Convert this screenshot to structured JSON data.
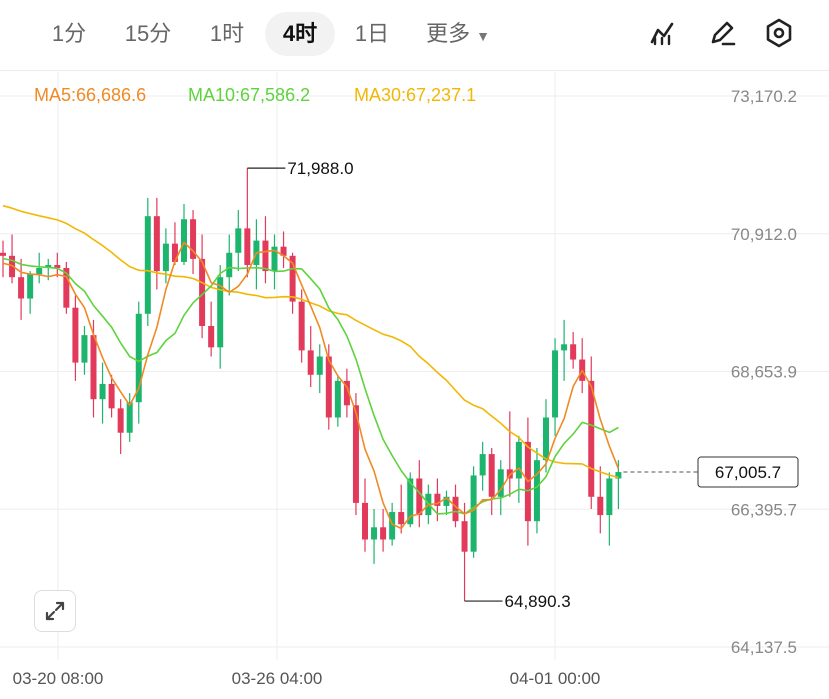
{
  "toolbar": {
    "tabs": [
      "1分",
      "15分",
      "1时",
      "4时",
      "1日"
    ],
    "active_tab": "4时",
    "more_label": "更多"
  },
  "icons": [
    "indicator-icon",
    "draw-icon",
    "settings-icon",
    "expand-icon"
  ],
  "moving_averages": {
    "ma5": "MA5:66,686.6",
    "ma10": "MA10:67,586.2",
    "ma30": "MA30:67,237.1"
  },
  "colors": {
    "up": "#1db46e",
    "down": "#e23a5a",
    "ma5": "#f08a24",
    "ma10": "#5ed33d",
    "ma30": "#f2b705",
    "grid": "#eeeeee",
    "axis_text": "#888888"
  },
  "chart_data": {
    "type": "candlestick",
    "y_axis_labels": [
      "73,170.2",
      "70,912.0",
      "68,653.9",
      "66,395.7",
      "64,137.5"
    ],
    "ylim": [
      64137.5,
      73170.2
    ],
    "x_axis_labels": [
      "03-20 08:00",
      "03-26 04:00",
      "04-01 00:00"
    ],
    "current_price": "67,005.7",
    "high_label": "71,988.0",
    "low_label": "64,890.3",
    "candles": [
      [
        70600,
        70800,
        70200,
        70550
      ],
      [
        70550,
        70900,
        70100,
        70200
      ],
      [
        70200,
        70500,
        69500,
        69850
      ],
      [
        69850,
        70300,
        69600,
        70250
      ],
      [
        70250,
        70600,
        70100,
        70350
      ],
      [
        70350,
        70500,
        70150,
        70400
      ],
      [
        70400,
        70600,
        70200,
        70350
      ],
      [
        70350,
        70450,
        69600,
        69700
      ],
      [
        69700,
        69900,
        68500,
        68800
      ],
      [
        68800,
        69400,
        68600,
        69250
      ],
      [
        69250,
        69500,
        67900,
        68200
      ],
      [
        68200,
        68800,
        67800,
        68450
      ],
      [
        68450,
        68600,
        67900,
        68050
      ],
      [
        68050,
        68200,
        67300,
        67650
      ],
      [
        67650,
        68300,
        67500,
        68150
      ],
      [
        68150,
        69800,
        67800,
        69600
      ],
      [
        69600,
        71500,
        69400,
        71200
      ],
      [
        71200,
        71500,
        70000,
        70300
      ],
      [
        70300,
        71000,
        70100,
        70750
      ],
      [
        70750,
        71100,
        70400,
        70450
      ],
      [
        70450,
        71400,
        70400,
        71150
      ],
      [
        71150,
        71300,
        70250,
        70500
      ],
      [
        70500,
        70900,
        69200,
        69400
      ],
      [
        69400,
        69800,
        68900,
        69050
      ],
      [
        69050,
        70400,
        68700,
        70200
      ],
      [
        70200,
        70900,
        69900,
        70600
      ],
      [
        70600,
        71300,
        70300,
        71000
      ],
      [
        71000,
        71988,
        70200,
        70400
      ],
      [
        70400,
        71150,
        70000,
        70800
      ],
      [
        70800,
        71200,
        70100,
        70300
      ],
      [
        70300,
        70900,
        70000,
        70700
      ],
      [
        70700,
        70950,
        70350,
        70550
      ],
      [
        70550,
        70600,
        69600,
        69800
      ],
      [
        69800,
        70000,
        68800,
        69000
      ],
      [
        69000,
        69400,
        68400,
        68600
      ],
      [
        68600,
        69100,
        68300,
        68900
      ],
      [
        68900,
        69100,
        67700,
        67900
      ],
      [
        67900,
        68600,
        67750,
        68500
      ],
      [
        68500,
        68700,
        67900,
        68100
      ],
      [
        68100,
        68300,
        66300,
        66500
      ],
      [
        66500,
        66900,
        65700,
        65900
      ],
      [
        65900,
        66400,
        65500,
        66100
      ],
      [
        66100,
        66400,
        65700,
        65900
      ],
      [
        65900,
        66500,
        65800,
        66350
      ],
      [
        66350,
        66800,
        66000,
        66150
      ],
      [
        66150,
        67000,
        66100,
        66900
      ],
      [
        66900,
        67200,
        66100,
        66300
      ],
      [
        66300,
        66800,
        66150,
        66650
      ],
      [
        66650,
        66900,
        66200,
        66450
      ],
      [
        66450,
        66700,
        66300,
        66600
      ],
      [
        66600,
        66800,
        66100,
        66200
      ],
      [
        66200,
        66500,
        64890.3,
        65700
      ],
      [
        65700,
        67100,
        65600,
        66950
      ],
      [
        66950,
        67500,
        66700,
        67300
      ],
      [
        67300,
        67400,
        66300,
        66600
      ],
      [
        66600,
        67200,
        66300,
        67050
      ],
      [
        67050,
        68000,
        66600,
        66900
      ],
      [
        66900,
        67600,
        66500,
        67500
      ],
      [
        67500,
        67900,
        65800,
        66200
      ],
      [
        66200,
        67400,
        66000,
        67200
      ],
      [
        67200,
        68200,
        67000,
        67900
      ],
      [
        67900,
        69200,
        67600,
        69000
      ],
      [
        69000,
        69500,
        68500,
        69100
      ],
      [
        69100,
        69300,
        68700,
        68850
      ],
      [
        68850,
        69200,
        68300,
        68500
      ],
      [
        68500,
        68900,
        66400,
        66600
      ],
      [
        66600,
        67100,
        66000,
        66300
      ],
      [
        66300,
        67000,
        65800,
        66900
      ],
      [
        66900,
        67200,
        66400,
        67005.7
      ]
    ]
  }
}
